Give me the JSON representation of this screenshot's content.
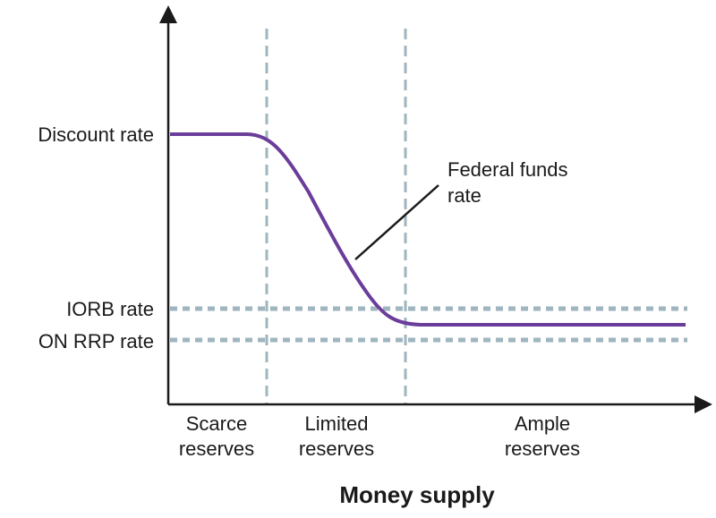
{
  "chart_data": {
    "type": "line",
    "title": "",
    "xlabel": "Money supply",
    "ylabel": "",
    "colors": {
      "curve": "#6a3d9a",
      "axis": "#1a1a1a",
      "guide": "#9fb5bf"
    },
    "y_levels": [
      {
        "label": "Discount rate",
        "value": 4
      },
      {
        "label": "IORB rate",
        "value": 1.3
      },
      {
        "label": "ON RRP rate",
        "value": 0.8
      }
    ],
    "regions": [
      {
        "line1": "Scarce",
        "line2": "reserves"
      },
      {
        "line1": "Limited",
        "line2": "reserves"
      },
      {
        "line1": "Ample",
        "line2": "reserves"
      }
    ],
    "series": [
      {
        "annotation_line1": "Federal funds",
        "annotation_line2": "rate",
        "values_description_free": true
      }
    ]
  }
}
